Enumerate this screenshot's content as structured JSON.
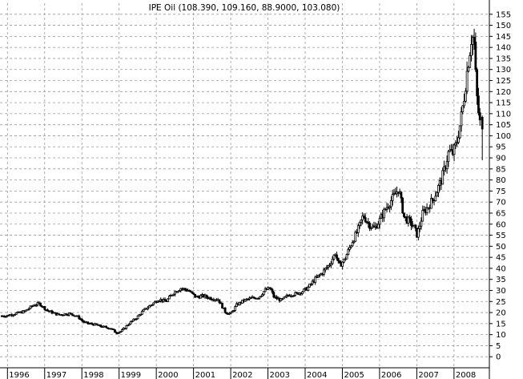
{
  "chart_data": {
    "type": "candlestick",
    "title": "IPE Oil (108.390, 109.160, 88.9000, 103.080)",
    "xlabel": "",
    "ylabel": "",
    "x_tick_labels": [
      "1996",
      "1997",
      "1998",
      "1999",
      "2000",
      "2001",
      "2002",
      "2003",
      "2004",
      "2005",
      "2006",
      "2007",
      "2008"
    ],
    "y_tick_labels": [
      0,
      5,
      10,
      15,
      20,
      25,
      30,
      35,
      40,
      45,
      50,
      55,
      60,
      65,
      70,
      75,
      80,
      85,
      90,
      95,
      100,
      105,
      110,
      115,
      120,
      125,
      130,
      135,
      140,
      145,
      150,
      155
    ],
    "ylim": [
      -5,
      160
    ],
    "xlim": [
      1995.8,
      2008.95
    ],
    "grid": true,
    "y_axis_side": "right",
    "up_color": "#ffffff",
    "down_color": "#000000",
    "line_color": "#000000",
    "grid_color": "#9a9a9a",
    "monthly_close": [
      [
        1996.0,
        18.5
      ],
      [
        1996.5,
        20.5
      ],
      [
        1996.75,
        23.5
      ],
      [
        1996.9,
        24.0
      ],
      [
        1997.1,
        21.0
      ],
      [
        1997.4,
        19.0
      ],
      [
        1997.7,
        19.5
      ],
      [
        1997.9,
        18.5
      ],
      [
        1998.1,
        15.5
      ],
      [
        1998.4,
        14.5
      ],
      [
        1998.6,
        13.5
      ],
      [
        1998.8,
        13.0
      ],
      [
        1998.95,
        11.0
      ],
      [
        1999.1,
        11.5
      ],
      [
        1999.3,
        15.0
      ],
      [
        1999.5,
        17.5
      ],
      [
        1999.7,
        21.0
      ],
      [
        1999.9,
        23.5
      ],
      [
        2000.1,
        26.0
      ],
      [
        2000.3,
        25.0
      ],
      [
        2000.5,
        29.0
      ],
      [
        2000.7,
        31.0
      ],
      [
        2000.9,
        30.0
      ],
      [
        2001.1,
        27.0
      ],
      [
        2001.3,
        27.5
      ],
      [
        2001.5,
        26.5
      ],
      [
        2001.7,
        26.0
      ],
      [
        2001.9,
        20.0
      ],
      [
        2002.05,
        19.5
      ],
      [
        2002.2,
        23.5
      ],
      [
        2002.4,
        25.5
      ],
      [
        2002.6,
        26.5
      ],
      [
        2002.8,
        27.0
      ],
      [
        2002.95,
        30.0
      ],
      [
        2003.1,
        31.0
      ],
      [
        2003.2,
        27.0
      ],
      [
        2003.4,
        25.5
      ],
      [
        2003.6,
        28.0
      ],
      [
        2003.8,
        28.5
      ],
      [
        2003.95,
        29.5
      ],
      [
        2004.1,
        31.0
      ],
      [
        2004.3,
        35.0
      ],
      [
        2004.5,
        38.0
      ],
      [
        2004.7,
        42.0
      ],
      [
        2004.85,
        47.0
      ],
      [
        2004.95,
        41.0
      ],
      [
        2005.1,
        44.0
      ],
      [
        2005.3,
        52.0
      ],
      [
        2005.45,
        57.0
      ],
      [
        2005.6,
        64.0
      ],
      [
        2005.75,
        60.0
      ],
      [
        2005.9,
        58.0
      ],
      [
        2006.05,
        62.0
      ],
      [
        2006.2,
        67.0
      ],
      [
        2006.4,
        72.0
      ],
      [
        2006.55,
        76.0
      ],
      [
        2006.7,
        63.0
      ],
      [
        2006.85,
        61.0
      ],
      [
        2006.95,
        59.0
      ],
      [
        2007.05,
        55.0
      ],
      [
        2007.2,
        65.0
      ],
      [
        2007.35,
        68.0
      ],
      [
        2007.5,
        72.0
      ],
      [
        2007.6,
        76.0
      ],
      [
        2007.7,
        80.0
      ],
      [
        2007.8,
        86.0
      ],
      [
        2007.9,
        93.0
      ],
      [
        2008.0,
        92.0
      ],
      [
        2008.1,
        96.0
      ],
      [
        2008.2,
        105.0
      ],
      [
        2008.3,
        116.0
      ],
      [
        2008.38,
        128.0
      ],
      [
        2008.46,
        138.0
      ],
      [
        2008.52,
        146.0
      ],
      [
        2008.58,
        142.0
      ],
      [
        2008.64,
        120.0
      ],
      [
        2008.7,
        110.0
      ],
      [
        2008.76,
        103.0
      ]
    ],
    "last_bar": {
      "open": 108.39,
      "high": 109.16,
      "low": 88.9,
      "close": 103.08
    }
  }
}
